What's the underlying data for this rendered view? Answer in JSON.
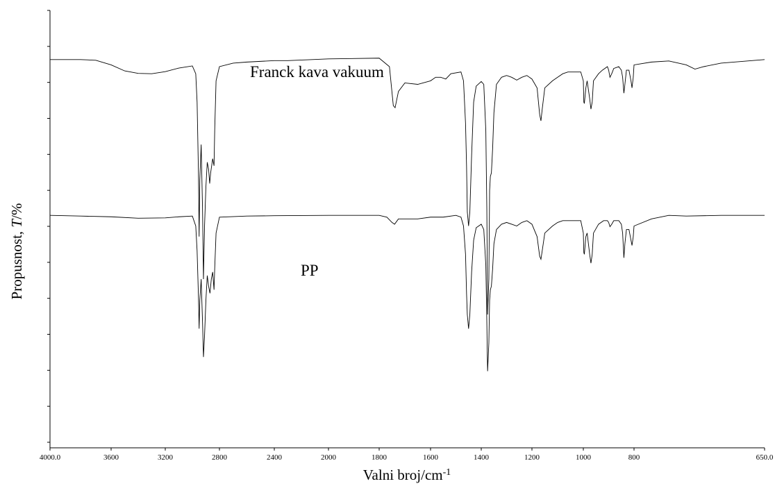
{
  "chart_data": {
    "type": "line",
    "xlabel_main": "Valni broj/cm",
    "xlabel_sup": "-1",
    "ylabel_main": "Propusnost,",
    "ylabel_italic": "T",
    "ylabel_unit": "/%",
    "x_reversed": true,
    "xlim": [
      4000,
      650
    ],
    "ylim": [
      0,
      100
    ],
    "x_ticks": [
      4000,
      3600,
      3200,
      2800,
      2400,
      2000,
      1800,
      1600,
      1400,
      1200,
      1000,
      800,
      650
    ],
    "x_tick_labels": [
      "4000.0",
      "3600",
      "3200",
      "2800",
      "2400",
      "2000",
      "1800",
      "1600",
      "1400",
      "1200",
      "1000",
      "800",
      "650.0"
    ],
    "y_tick_count": 13,
    "y_tick_labels_shown": false,
    "grid": false,
    "legend": "none",
    "annotations": [
      {
        "text": "Franck kava vakuum",
        "series": 0
      },
      {
        "text": "PP",
        "series": 1
      }
    ],
    "series": [
      {
        "name": "Franck kava vakuum",
        "color": "#000000",
        "points": [
          [
            4000,
            92
          ],
          [
            3800,
            92
          ],
          [
            3700,
            91.8
          ],
          [
            3600,
            90.5
          ],
          [
            3500,
            88.8
          ],
          [
            3400,
            88.1
          ],
          [
            3300,
            88.0
          ],
          [
            3200,
            88.6
          ],
          [
            3100,
            89.6
          ],
          [
            3000,
            90.2
          ],
          [
            2975,
            88
          ],
          [
            2965,
            80
          ],
          [
            2955,
            60
          ],
          [
            2950,
            42
          ],
          [
            2945,
            58
          ],
          [
            2935,
            68
          ],
          [
            2925,
            50
          ],
          [
            2918,
            30
          ],
          [
            2910,
            45
          ],
          [
            2900,
            56
          ],
          [
            2890,
            63
          ],
          [
            2880,
            61
          ],
          [
            2872,
            57
          ],
          [
            2865,
            60
          ],
          [
            2850,
            64
          ],
          [
            2840,
            62
          ],
          [
            2835,
            72
          ],
          [
            2825,
            86
          ],
          [
            2800,
            90
          ],
          [
            2700,
            91
          ],
          [
            2600,
            91.3
          ],
          [
            2400,
            91.7
          ],
          [
            2300,
            91.7
          ],
          [
            2000,
            92.2
          ],
          [
            1800,
            92.4
          ],
          [
            1760,
            90
          ],
          [
            1745,
            79
          ],
          [
            1738,
            78.4
          ],
          [
            1725,
            83
          ],
          [
            1700,
            85.4
          ],
          [
            1650,
            85
          ],
          [
            1600,
            86
          ],
          [
            1580,
            87
          ],
          [
            1560,
            87
          ],
          [
            1540,
            86.5
          ],
          [
            1520,
            88
          ],
          [
            1480,
            88.5
          ],
          [
            1470,
            86
          ],
          [
            1462,
            74
          ],
          [
            1458,
            62
          ],
          [
            1455,
            49
          ],
          [
            1450,
            45
          ],
          [
            1445,
            49
          ],
          [
            1438,
            65
          ],
          [
            1430,
            80
          ],
          [
            1420,
            84.5
          ],
          [
            1400,
            85.8
          ],
          [
            1390,
            85
          ],
          [
            1382,
            72
          ],
          [
            1378,
            50
          ],
          [
            1376,
            30
          ],
          [
            1375,
            20
          ],
          [
            1370,
            30
          ],
          [
            1367,
            55
          ],
          [
            1364,
            59
          ],
          [
            1360,
            60
          ],
          [
            1355,
            67
          ],
          [
            1350,
            77
          ],
          [
            1340,
            85
          ],
          [
            1320,
            87
          ],
          [
            1300,
            87.5
          ],
          [
            1280,
            87
          ],
          [
            1260,
            86.2
          ],
          [
            1240,
            87
          ],
          [
            1220,
            87.5
          ],
          [
            1200,
            86.5
          ],
          [
            1180,
            84
          ],
          [
            1170,
            76.5
          ],
          [
            1165,
            74.7
          ],
          [
            1160,
            78
          ],
          [
            1150,
            84
          ],
          [
            1120,
            86
          ],
          [
            1100,
            87
          ],
          [
            1080,
            88
          ],
          [
            1060,
            88.5
          ],
          [
            1040,
            88.5
          ],
          [
            1010,
            88.5
          ],
          [
            1000,
            86
          ],
          [
            998,
            80
          ],
          [
            996,
            79.6
          ],
          [
            990,
            84
          ],
          [
            985,
            86
          ],
          [
            975,
            81
          ],
          [
            970,
            78
          ],
          [
            965,
            80
          ],
          [
            960,
            86
          ],
          [
            940,
            88
          ],
          [
            925,
            89
          ],
          [
            905,
            90
          ],
          [
            900,
            89
          ],
          [
            895,
            87
          ],
          [
            888,
            88
          ],
          [
            880,
            89.5
          ],
          [
            860,
            90
          ],
          [
            850,
            89
          ],
          [
            845,
            87
          ],
          [
            840,
            82.5
          ],
          [
            836,
            85
          ],
          [
            830,
            89
          ],
          [
            820,
            89
          ],
          [
            812,
            86
          ],
          [
            808,
            84
          ],
          [
            803,
            87
          ],
          [
            800,
            90.5
          ],
          [
            780,
            91.3
          ],
          [
            760,
            91.6
          ],
          [
            740,
            90.5
          ],
          [
            730,
            89.3
          ],
          [
            720,
            90
          ],
          [
            700,
            91
          ],
          [
            650,
            92
          ]
        ]
      },
      {
        "name": "PP",
        "color": "#000000",
        "points": [
          [
            4000,
            48
          ],
          [
            3800,
            47.8
          ],
          [
            3600,
            47.6
          ],
          [
            3400,
            47.2
          ],
          [
            3200,
            47.3
          ],
          [
            3100,
            47.6
          ],
          [
            3000,
            47.8
          ],
          [
            2975,
            45
          ],
          [
            2965,
            38
          ],
          [
            2955,
            25
          ],
          [
            2950,
            16
          ],
          [
            2945,
            24
          ],
          [
            2935,
            30
          ],
          [
            2925,
            18
          ],
          [
            2918,
            8
          ],
          [
            2910,
            14
          ],
          [
            2900,
            24
          ],
          [
            2890,
            31
          ],
          [
            2880,
            28
          ],
          [
            2870,
            26
          ],
          [
            2860,
            30
          ],
          [
            2850,
            32
          ],
          [
            2840,
            27
          ],
          [
            2835,
            33
          ],
          [
            2825,
            43
          ],
          [
            2800,
            47.5
          ],
          [
            2600,
            47.8
          ],
          [
            2400,
            47.9
          ],
          [
            2000,
            48
          ],
          [
            1800,
            48
          ],
          [
            1770,
            47.5
          ],
          [
            1750,
            46
          ],
          [
            1740,
            45.5
          ],
          [
            1725,
            47
          ],
          [
            1700,
            47
          ],
          [
            1650,
            47
          ],
          [
            1600,
            47.5
          ],
          [
            1550,
            47.5
          ],
          [
            1500,
            48
          ],
          [
            1480,
            47.5
          ],
          [
            1470,
            45
          ],
          [
            1462,
            37
          ],
          [
            1458,
            26
          ],
          [
            1455,
            20
          ],
          [
            1450,
            16
          ],
          [
            1445,
            20
          ],
          [
            1438,
            32
          ],
          [
            1430,
            41
          ],
          [
            1420,
            44.5
          ],
          [
            1400,
            45.5
          ],
          [
            1390,
            44
          ],
          [
            1382,
            34
          ],
          [
            1378,
            18
          ],
          [
            1376,
            8
          ],
          [
            1375,
            4
          ],
          [
            1370,
            12
          ],
          [
            1367,
            24
          ],
          [
            1364,
            27
          ],
          [
            1360,
            28
          ],
          [
            1355,
            33
          ],
          [
            1350,
            40
          ],
          [
            1340,
            44
          ],
          [
            1320,
            45.5
          ],
          [
            1300,
            46
          ],
          [
            1280,
            45.5
          ],
          [
            1260,
            45
          ],
          [
            1240,
            46
          ],
          [
            1220,
            46.5
          ],
          [
            1200,
            45.5
          ],
          [
            1180,
            42
          ],
          [
            1170,
            36.5
          ],
          [
            1165,
            35.6
          ],
          [
            1160,
            38
          ],
          [
            1150,
            43
          ],
          [
            1120,
            45
          ],
          [
            1100,
            46
          ],
          [
            1080,
            46.5
          ],
          [
            1060,
            46.5
          ],
          [
            1040,
            46.5
          ],
          [
            1010,
            46.5
          ],
          [
            1000,
            43
          ],
          [
            998,
            37.5
          ],
          [
            996,
            37
          ],
          [
            990,
            42
          ],
          [
            985,
            43
          ],
          [
            975,
            37
          ],
          [
            970,
            34.5
          ],
          [
            965,
            37
          ],
          [
            960,
            43
          ],
          [
            940,
            45.5
          ],
          [
            920,
            46.5
          ],
          [
            905,
            46.5
          ],
          [
            900,
            46
          ],
          [
            895,
            44.8
          ],
          [
            888,
            45.5
          ],
          [
            880,
            46.5
          ],
          [
            860,
            46.5
          ],
          [
            850,
            45.5
          ],
          [
            845,
            43
          ],
          [
            840,
            36
          ],
          [
            836,
            40
          ],
          [
            830,
            44
          ],
          [
            820,
            44
          ],
          [
            812,
            41
          ],
          [
            808,
            39.5
          ],
          [
            803,
            42
          ],
          [
            800,
            45
          ],
          [
            780,
            47
          ],
          [
            760,
            48
          ],
          [
            740,
            47.8
          ],
          [
            700,
            48
          ],
          [
            650,
            48
          ]
        ]
      }
    ]
  }
}
